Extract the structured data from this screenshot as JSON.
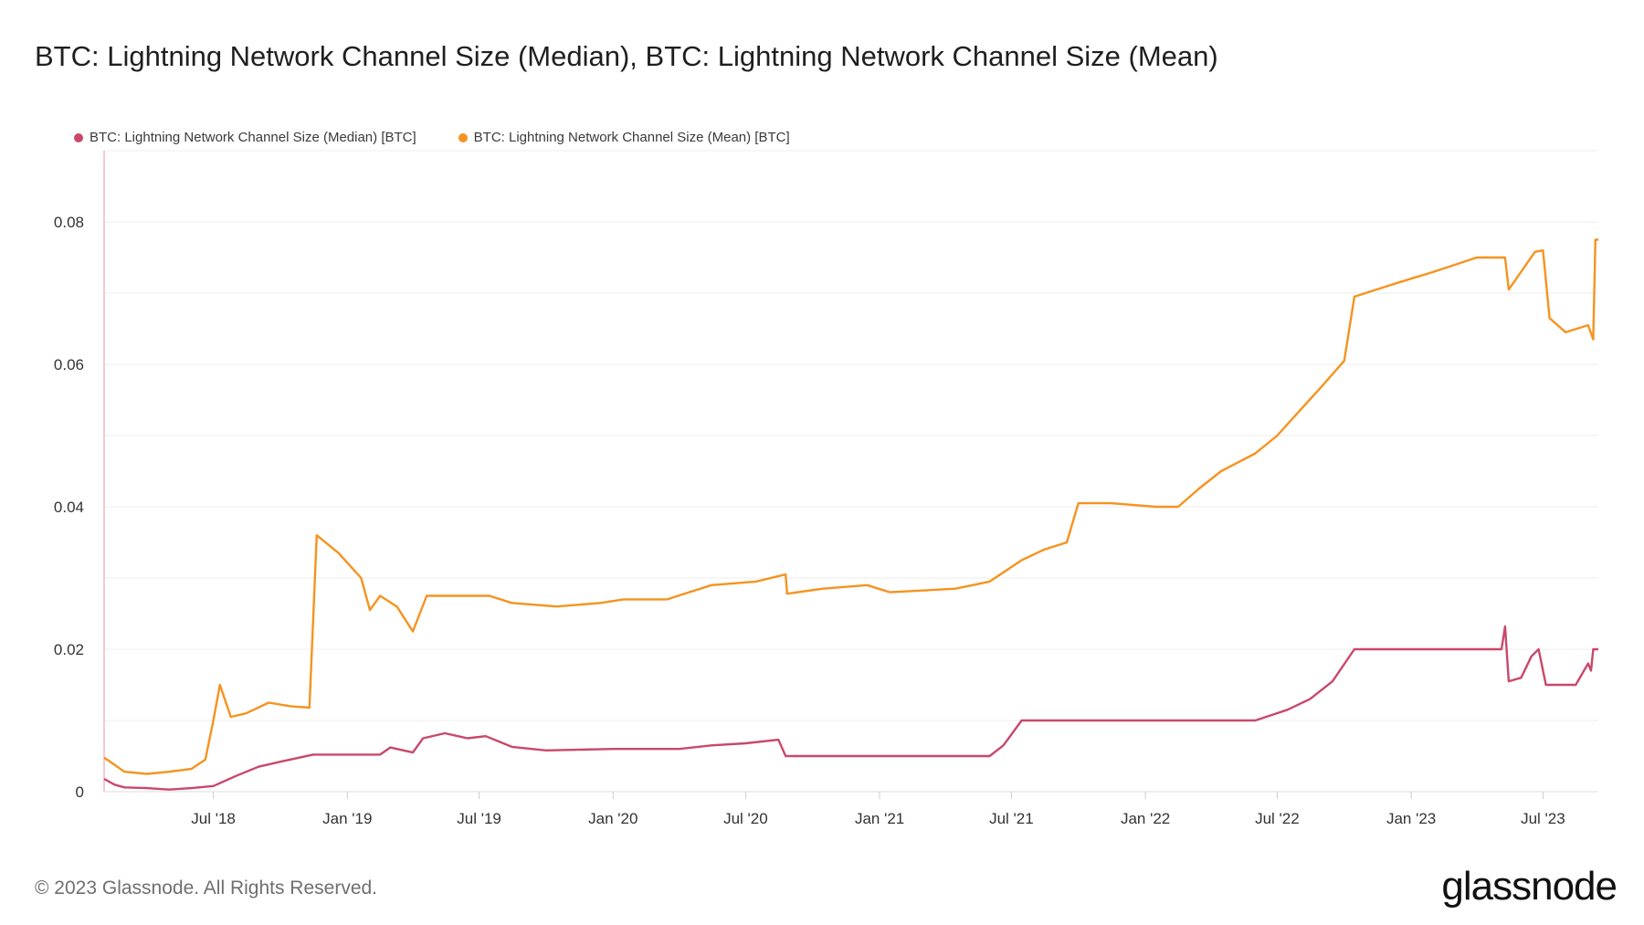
{
  "title": "BTC: Lightning Network Channel Size (Median), BTC: Lightning Network Channel Size (Mean)",
  "footer": "© 2023 Glassnode. All Rights Reserved.",
  "brand": "glassnode",
  "colors": {
    "median": "#c9486a",
    "mean": "#f5931f",
    "grid": "#eeeeee",
    "axis": "#dddddd",
    "left_axis": "#f3b6c4"
  },
  "chart_data": {
    "type": "line",
    "title": "BTC: Lightning Network Channel Size (Median), BTC: Lightning Network Channel Size (Mean)",
    "xlabel": "",
    "ylabel": "",
    "xlim": [
      "2018-02-01",
      "2023-09-15"
    ],
    "ylim": [
      0,
      0.09
    ],
    "yticks": [
      0,
      0.02,
      0.04,
      0.06,
      0.08
    ],
    "ytick_labels": [
      "0",
      "0.02",
      "0.04",
      "0.06",
      "0.08"
    ],
    "xticks": [
      "2018-07-01",
      "2019-01-01",
      "2019-07-01",
      "2020-01-01",
      "2020-07-01",
      "2021-01-01",
      "2021-07-01",
      "2022-01-01",
      "2022-07-01",
      "2023-01-01",
      "2023-07-01"
    ],
    "xtick_labels": [
      "Jul '18",
      "Jan '19",
      "Jul '19",
      "Jan '20",
      "Jul '20",
      "Jan '21",
      "Jul '21",
      "Jan '22",
      "Jul '22",
      "Jan '23",
      "Jul '23"
    ],
    "grid": true,
    "legend_position": "top-left",
    "series": [
      {
        "name": "BTC: Lightning Network Channel Size (Median) [BTC]",
        "color": "#c9486a",
        "points": [
          [
            "2018-02-01",
            0.0018
          ],
          [
            "2018-02-15",
            0.001
          ],
          [
            "2018-03-01",
            0.0006
          ],
          [
            "2018-04-01",
            0.0005
          ],
          [
            "2018-05-01",
            0.0003
          ],
          [
            "2018-06-01",
            0.0005
          ],
          [
            "2018-07-01",
            0.0008
          ],
          [
            "2018-08-01",
            0.0022
          ],
          [
            "2018-09-01",
            0.0035
          ],
          [
            "2018-10-01",
            0.0042
          ],
          [
            "2018-11-15",
            0.0052
          ],
          [
            "2019-01-01",
            0.0052
          ],
          [
            "2019-02-15",
            0.0052
          ],
          [
            "2019-03-01",
            0.0062
          ],
          [
            "2019-04-01",
            0.0055
          ],
          [
            "2019-04-15",
            0.0075
          ],
          [
            "2019-05-15",
            0.0082
          ],
          [
            "2019-06-15",
            0.0075
          ],
          [
            "2019-07-10",
            0.0078
          ],
          [
            "2019-08-15",
            0.0063
          ],
          [
            "2019-10-01",
            0.0058
          ],
          [
            "2020-01-01",
            0.006
          ],
          [
            "2020-04-01",
            0.006
          ],
          [
            "2020-05-15",
            0.0065
          ],
          [
            "2020-07-01",
            0.0068
          ],
          [
            "2020-08-15",
            0.0073
          ],
          [
            "2020-08-25",
            0.005
          ],
          [
            "2021-01-01",
            0.005
          ],
          [
            "2021-06-01",
            0.005
          ],
          [
            "2021-06-20",
            0.0065
          ],
          [
            "2021-07-15",
            0.01
          ],
          [
            "2022-01-01",
            0.01
          ],
          [
            "2022-06-01",
            0.01
          ],
          [
            "2022-07-15",
            0.0115
          ],
          [
            "2022-08-15",
            0.013
          ],
          [
            "2022-09-15",
            0.0155
          ],
          [
            "2022-10-15",
            0.02
          ],
          [
            "2023-01-01",
            0.02
          ],
          [
            "2023-05-05",
            0.02
          ],
          [
            "2023-05-10",
            0.0232
          ],
          [
            "2023-05-15",
            0.0155
          ],
          [
            "2023-06-01",
            0.016
          ],
          [
            "2023-06-15",
            0.019
          ],
          [
            "2023-06-25",
            0.02
          ],
          [
            "2023-07-05",
            0.015
          ],
          [
            "2023-08-15",
            0.015
          ],
          [
            "2023-09-01",
            0.018
          ],
          [
            "2023-09-05",
            0.017
          ],
          [
            "2023-09-08",
            0.02
          ],
          [
            "2023-09-15",
            0.02
          ]
        ]
      },
      {
        "name": "BTC: Lightning Network Channel Size (Mean) [BTC]",
        "color": "#f5931f",
        "points": [
          [
            "2018-02-01",
            0.0048
          ],
          [
            "2018-03-01",
            0.0028
          ],
          [
            "2018-04-01",
            0.0025
          ],
          [
            "2018-05-01",
            0.0028
          ],
          [
            "2018-06-01",
            0.0032
          ],
          [
            "2018-06-20",
            0.0045
          ],
          [
            "2018-07-01",
            0.01
          ],
          [
            "2018-07-10",
            0.015
          ],
          [
            "2018-07-25",
            0.0105
          ],
          [
            "2018-08-15",
            0.011
          ],
          [
            "2018-09-15",
            0.0125
          ],
          [
            "2018-10-15",
            0.012
          ],
          [
            "2018-11-10",
            0.0118
          ],
          [
            "2018-11-20",
            0.036
          ],
          [
            "2018-12-20",
            0.0335
          ],
          [
            "2019-01-20",
            0.03
          ],
          [
            "2019-02-01",
            0.0255
          ],
          [
            "2019-02-15",
            0.0275
          ],
          [
            "2019-03-10",
            0.026
          ],
          [
            "2019-04-01",
            0.0225
          ],
          [
            "2019-04-20",
            0.0275
          ],
          [
            "2019-05-15",
            0.0275
          ],
          [
            "2019-06-15",
            0.0275
          ],
          [
            "2019-07-15",
            0.0275
          ],
          [
            "2019-08-15",
            0.0265
          ],
          [
            "2019-10-15",
            0.026
          ],
          [
            "2019-12-15",
            0.0265
          ],
          [
            "2020-01-15",
            0.027
          ],
          [
            "2020-03-15",
            0.027
          ],
          [
            "2020-05-15",
            0.029
          ],
          [
            "2020-07-15",
            0.0295
          ],
          [
            "2020-08-25",
            0.0305
          ],
          [
            "2020-08-27",
            0.0278
          ],
          [
            "2020-10-15",
            0.0285
          ],
          [
            "2020-12-15",
            0.029
          ],
          [
            "2021-01-15",
            0.028
          ],
          [
            "2021-04-15",
            0.0285
          ],
          [
            "2021-06-01",
            0.0295
          ],
          [
            "2021-07-15",
            0.0325
          ],
          [
            "2021-08-15",
            0.034
          ],
          [
            "2021-09-15",
            0.035
          ],
          [
            "2021-10-01",
            0.0405
          ],
          [
            "2021-11-15",
            0.0405
          ],
          [
            "2022-01-15",
            0.04
          ],
          [
            "2022-02-15",
            0.04
          ],
          [
            "2022-03-15",
            0.0425
          ],
          [
            "2022-04-15",
            0.045
          ],
          [
            "2022-06-01",
            0.0475
          ],
          [
            "2022-07-01",
            0.05
          ],
          [
            "2022-08-01",
            0.0535
          ],
          [
            "2022-09-01",
            0.057
          ],
          [
            "2022-10-01",
            0.0605
          ],
          [
            "2022-10-15",
            0.0695
          ],
          [
            "2022-12-15",
            0.0715
          ],
          [
            "2023-02-01",
            0.073
          ],
          [
            "2023-04-01",
            0.075
          ],
          [
            "2023-05-10",
            0.075
          ],
          [
            "2023-05-15",
            0.0705
          ],
          [
            "2023-06-01",
            0.073
          ],
          [
            "2023-06-20",
            0.0758
          ],
          [
            "2023-07-01",
            0.076
          ],
          [
            "2023-07-10",
            0.0665
          ],
          [
            "2023-08-01",
            0.0645
          ],
          [
            "2023-09-01",
            0.0655
          ],
          [
            "2023-09-08",
            0.0635
          ],
          [
            "2023-09-11",
            0.0775
          ],
          [
            "2023-09-15",
            0.0775
          ]
        ]
      }
    ]
  }
}
